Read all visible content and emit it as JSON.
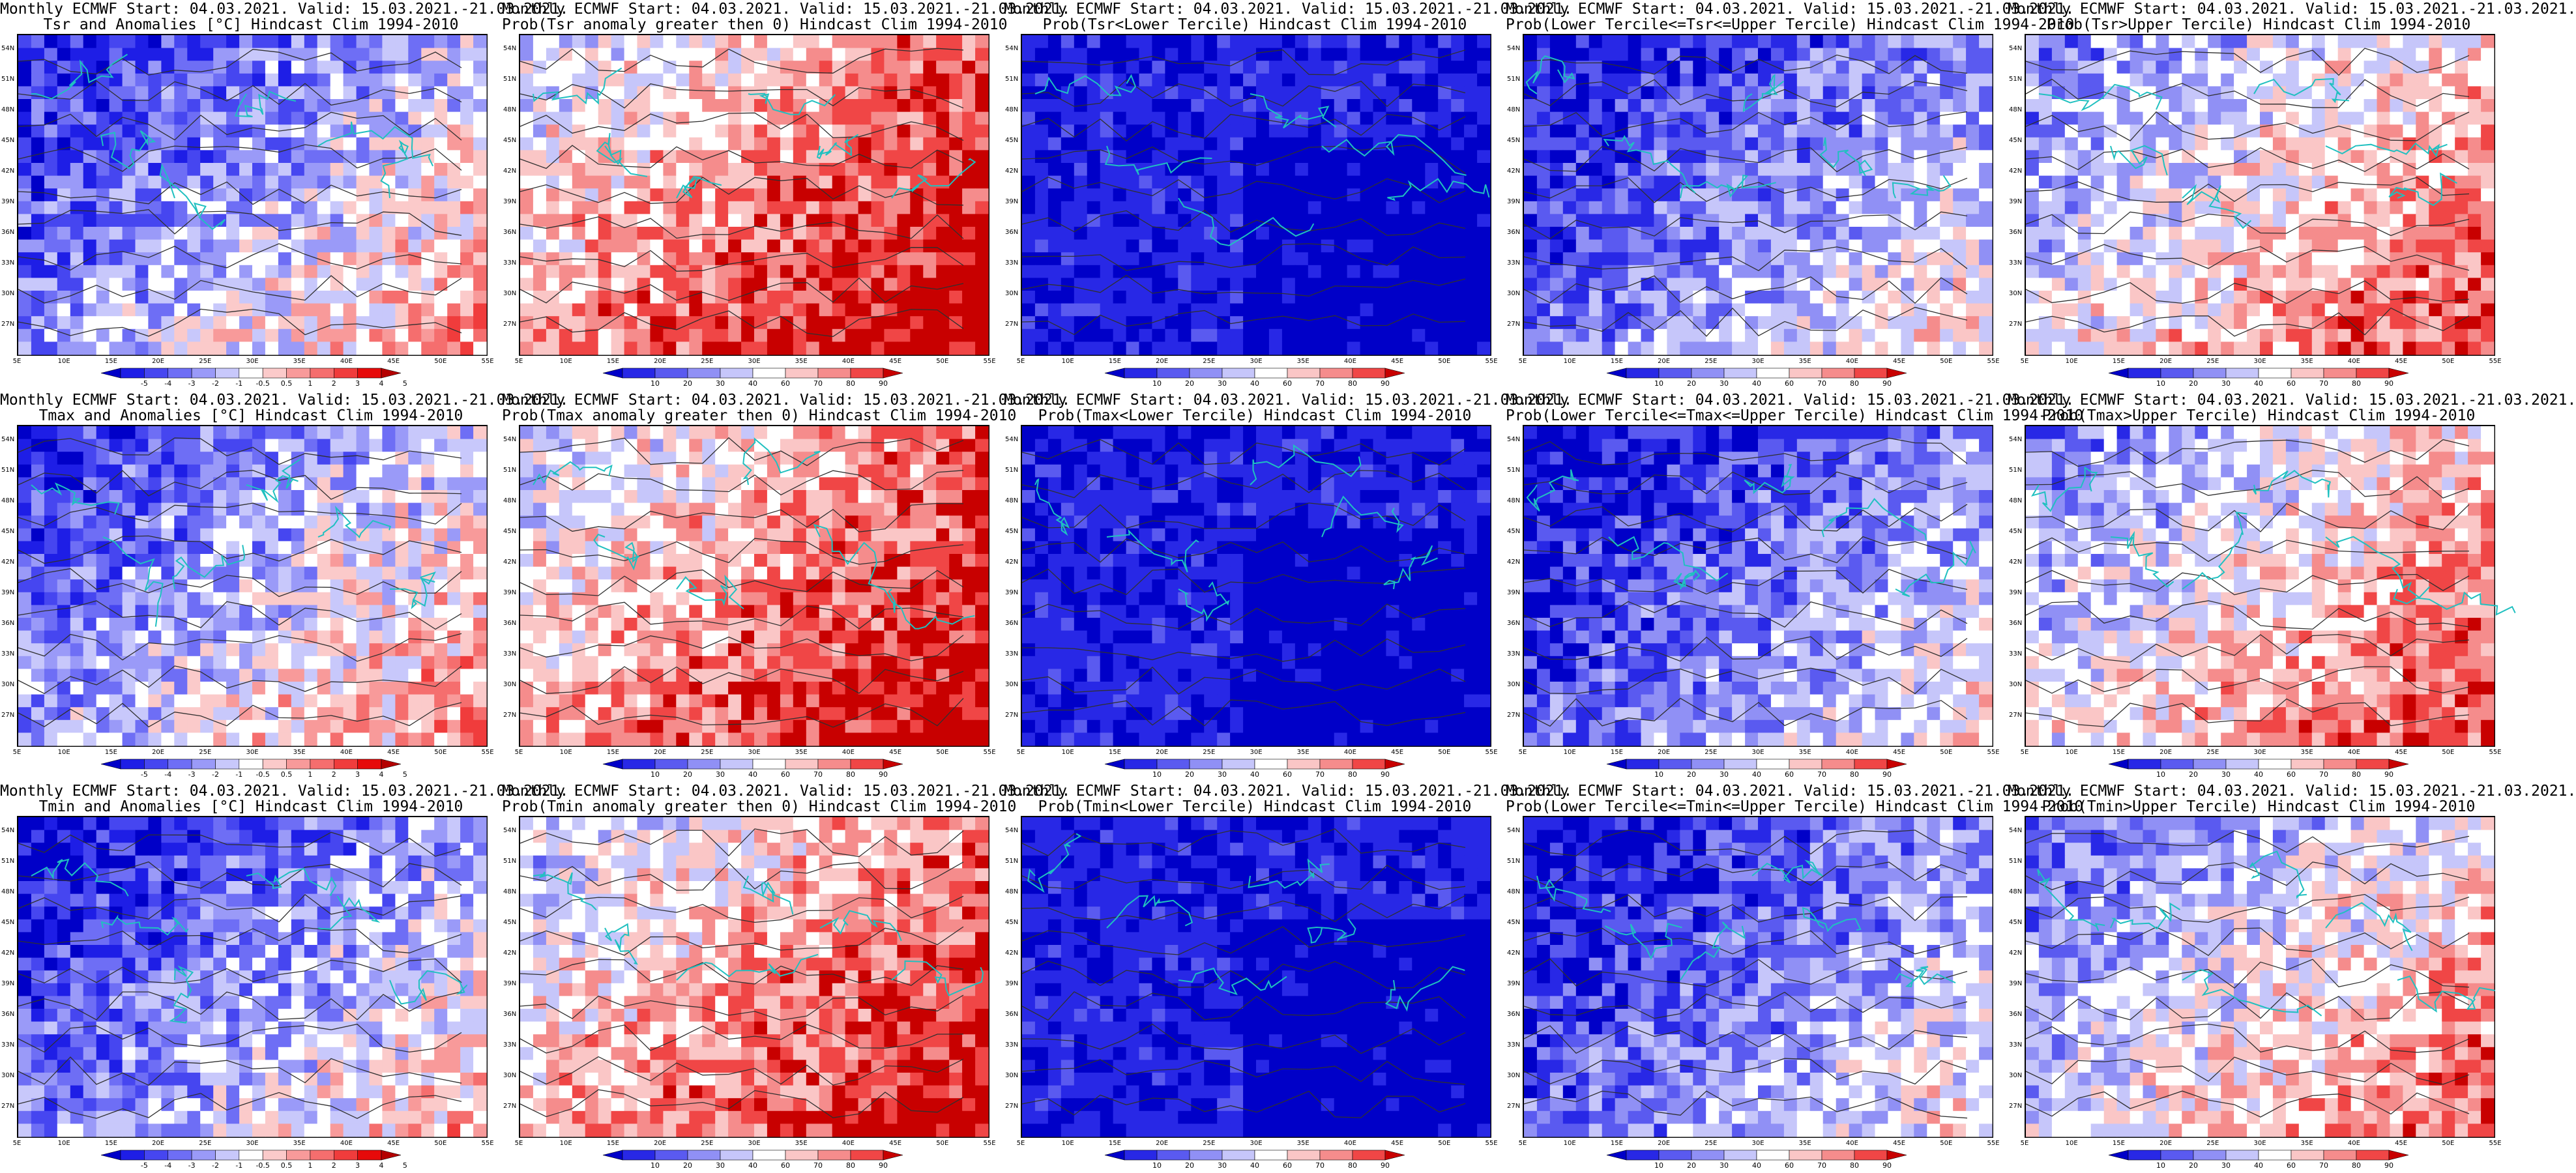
{
  "panels": [
    {
      "title1": "Monthly ECMWF Start: 04.03.2021. Valid: 15.03.2021.-21.03.2021.",
      "title2": "Tsr and Anomalies [°C] Hindcast Clim 1994-2010",
      "scale": "anom",
      "bias": 0.35
    },
    {
      "title1": "Monthly ECMWF Start: 04.03.2021. Valid: 15.03.2021.-21.03.2021.",
      "title2": "Prob(Tsr anomaly greater then 0) Hindcast Clim 1994-2010",
      "scale": "prob",
      "bias": 0.72
    },
    {
      "title1": "Monthly ECMWF Start: 04.03.2021. Valid: 15.03.2021.-21.03.2021.",
      "title2": "Prob(Tsr<Lower Tercile) Hindcast Clim 1994-2010",
      "scale": "prob",
      "bias": 0.08
    },
    {
      "title1": "Monthly ECMWF Start: 04.03.2021. Valid: 15.03.2021.-21.03.2021.",
      "title2": "Prob(Lower Tercile<=Tsr<=Upper Tercile) Hindcast Clim 1994-2010",
      "scale": "prob",
      "bias": 0.3
    },
    {
      "title1": "Monthly ECMWF Start: 04.03.2021. Valid: 15.03.2021.-21.03.2021.",
      "title2": "Prob(Tsr>Upper Tercile) Hindcast Clim 1994-2010",
      "scale": "prob",
      "bias": 0.55
    },
    {
      "title1": "Monthly ECMWF Start: 04.03.2021. Valid: 15.03.2021.-21.03.2021.",
      "title2": "Tmax and Anomalies [°C] Hindcast Clim 1994-2010",
      "scale": "anom",
      "bias": 0.38
    },
    {
      "title1": "Monthly ECMWF Start: 04.03.2021. Valid: 15.03.2021.-21.03.2021.",
      "title2": "Prob(Tmax anomaly greater then 0) Hindcast Clim 1994-2010",
      "scale": "prob",
      "bias": 0.7
    },
    {
      "title1": "Monthly ECMWF Start: 04.03.2021. Valid: 15.03.2021.-21.03.2021.",
      "title2": "Prob(Tmax<Lower Tercile) Hindcast Clim 1994-2010",
      "scale": "prob",
      "bias": 0.08
    },
    {
      "title1": "Monthly ECMWF Start: 04.03.2021. Valid: 15.03.2021.-21.03.2021.",
      "title2": "Prob(Lower Tercile<=Tmax<=Upper Tercile) Hindcast Clim 1994-2010",
      "scale": "prob",
      "bias": 0.28
    },
    {
      "title1": "Monthly ECMWF Start: 04.03.2021. Valid: 15.03.2021.-21.03.2021.",
      "title2": "Prob(Tmax>Upper Tercile) Hindcast Clim 1994-2010",
      "scale": "prob",
      "bias": 0.55
    },
    {
      "title1": "Monthly ECMWF Start: 04.03.2021. Valid: 15.03.2021.-21.03.2021.",
      "title2": "Tmin and Anomalies [°C] Hindcast Clim 1994-2010",
      "scale": "anom",
      "bias": 0.3
    },
    {
      "title1": "Monthly ECMWF Start: 04.03.2021. Valid: 15.03.2021.-21.03.2021.",
      "title2": "Prob(Tmin anomaly greater then 0) Hindcast Clim 1994-2010",
      "scale": "prob",
      "bias": 0.68
    },
    {
      "title1": "Monthly ECMWF Start: 04.03.2021. Valid: 15.03.2021.-21.03.2021.",
      "title2": "Prob(Tmin<Lower Tercile) Hindcast Clim 1994-2010",
      "scale": "prob",
      "bias": 0.08
    },
    {
      "title1": "Monthly ECMWF Start: 04.03.2021. Valid: 15.03.2021.-21.03.2021.",
      "title2": "Prob(Lower Tercile<=Tmin<=Upper Tercile) Hindcast Clim 1994-2010",
      "scale": "prob",
      "bias": 0.28
    },
    {
      "title1": "Monthly ECMWF Start: 04.03.2021. Valid: 15.03.2021.-21.03.2021.",
      "title2": "Prob(Tmin>Upper Tercile) Hindcast Clim 1994-2010",
      "scale": "prob",
      "bias": 0.5
    }
  ],
  "lat_labels": [
    "54N",
    "51N",
    "48N",
    "45N",
    "42N",
    "39N",
    "36N",
    "33N",
    "30N",
    "27N"
  ],
  "lon_labels": [
    "5E",
    "10E",
    "15E",
    "20E",
    "25E",
    "30E",
    "35E",
    "40E",
    "45E",
    "50E",
    "55E"
  ],
  "scales": {
    "anom": {
      "labels": [
        "-5",
        "-4",
        "-3",
        "-2",
        "-1",
        "-0.5",
        "0.5",
        "1",
        "2",
        "3",
        "4",
        "5"
      ],
      "colors": [
        "#0000c8",
        "#1e1ee6",
        "#4646f0",
        "#6e6ef5",
        "#9a9af8",
        "#c8c8fb",
        "#ffffff",
        "#fbcaca",
        "#f89a9a",
        "#f56e6e",
        "#f03c3c",
        "#e60a0a",
        "#b40000"
      ]
    },
    "prob": {
      "labels": [
        "10",
        "20",
        "30",
        "40",
        "60",
        "70",
        "80",
        "90"
      ],
      "colors": [
        "#0000c8",
        "#2828e6",
        "#5a5af0",
        "#9090f5",
        "#c6c6fa",
        "#ffffff",
        "#fac6c6",
        "#f58c8c",
        "#f04646",
        "#c80000"
      ]
    }
  },
  "colors": {
    "coast": "#20c0c0",
    "contour": "#303030",
    "frame": "#000000"
  }
}
